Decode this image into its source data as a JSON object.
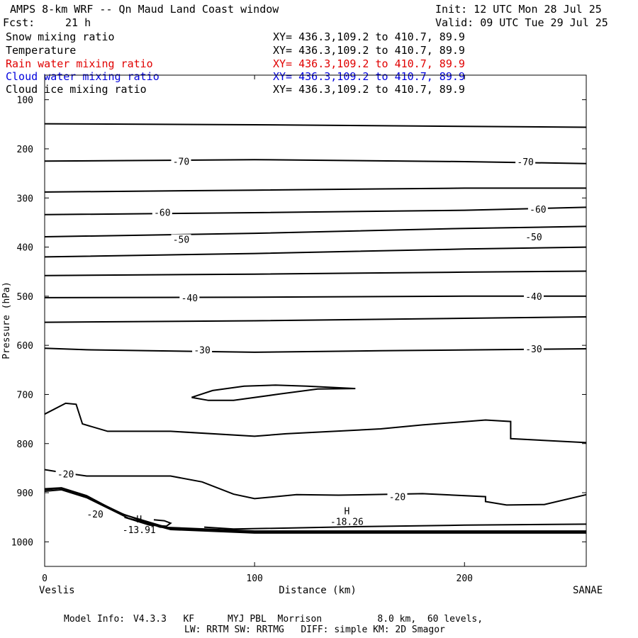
{
  "header": {
    "title": "AMPS 8-km WRF -- Qn Maud Land Coast window",
    "init": "Init: 12 UTC Mon 28 Jul 25",
    "fcst_label": "Fcst:",
    "fcst_value": "21 h",
    "valid": "Valid: 09 UTC Tue 29 Jul 25"
  },
  "fields": [
    {
      "name": "Snow mixing ratio",
      "xy": "XY= 436.3,109.2 to 410.7, 89.9",
      "color": "#000000"
    },
    {
      "name": "Temperature",
      "xy": "XY= 436.3,109.2 to 410.7, 89.9",
      "color": "#000000"
    },
    {
      "name": "Rain water mixing ratio",
      "xy": "XY= 436.3,109.2 to 410.7, 89.9",
      "color": "#e00000"
    },
    {
      "name": "Cloud water mixing ratio",
      "xy": "XY= 436.3,109.2 to 410.7, 89.9",
      "color": "#0000dd"
    },
    {
      "name": "Cloud ice mixing ratio",
      "xy": "XY= 436.3,109.2 to 410.7, 89.9",
      "color": "#000000"
    }
  ],
  "chart_data": {
    "type": "contour",
    "xlabel": "Distance (km)",
    "ylabel": "Pressure (hPa)",
    "xlim": [
      0,
      258
    ],
    "ylim": [
      1050,
      50
    ],
    "x_ticks": [
      0,
      100,
      200
    ],
    "y_ticks": [
      100,
      200,
      300,
      400,
      500,
      600,
      700,
      800,
      900,
      1000
    ],
    "x_endpoints": {
      "left": "Veslis",
      "right": "SANAE"
    },
    "contour_labels": [
      {
        "text": "-70",
        "x": 65,
        "y": 225
      },
      {
        "text": "-70",
        "x": 229,
        "y": 226
      },
      {
        "text": "-60",
        "x": 56,
        "y": 329
      },
      {
        "text": "-60",
        "x": 235,
        "y": 323
      },
      {
        "text": "-50",
        "x": 65,
        "y": 384
      },
      {
        "text": "-50",
        "x": 233,
        "y": 379
      },
      {
        "text": "-40",
        "x": 69,
        "y": 503
      },
      {
        "text": "-40",
        "x": 233,
        "y": 500
      },
      {
        "text": "-30",
        "x": 75,
        "y": 609
      },
      {
        "text": "-30",
        "x": 233,
        "y": 607
      },
      {
        "text": "-20",
        "x": 10,
        "y": 862
      },
      {
        "text": "-20",
        "x": 24,
        "y": 943
      },
      {
        "text": "-20",
        "x": 168,
        "y": 908
      }
    ],
    "extrema": [
      {
        "label": "H",
        "value": "-13.91",
        "x": 45,
        "y": 966
      },
      {
        "label": "H",
        "value": "-18.26",
        "x": 144,
        "y": 950
      }
    ],
    "contours": [
      [
        [
          0,
          149
        ],
        [
          100,
          151
        ],
        [
          258,
          156
        ]
      ],
      [
        [
          0,
          225
        ],
        [
          100,
          222
        ],
        [
          200,
          226
        ],
        [
          258,
          230
        ]
      ],
      [
        [
          0,
          288
        ],
        [
          100,
          284
        ],
        [
          200,
          280
        ],
        [
          258,
          280
        ]
      ],
      [
        [
          0,
          334
        ],
        [
          100,
          330
        ],
        [
          200,
          325
        ],
        [
          258,
          319
        ]
      ],
      [
        [
          0,
          379
        ],
        [
          100,
          372
        ],
        [
          200,
          362
        ],
        [
          258,
          358
        ]
      ],
      [
        [
          0,
          420
        ],
        [
          100,
          413
        ],
        [
          200,
          404
        ],
        [
          258,
          400
        ]
      ],
      [
        [
          0,
          458
        ],
        [
          100,
          455
        ],
        [
          200,
          451
        ],
        [
          258,
          449
        ]
      ],
      [
        [
          0,
          503
        ],
        [
          100,
          502
        ],
        [
          200,
          500
        ],
        [
          258,
          500
        ]
      ],
      [
        [
          0,
          553
        ],
        [
          100,
          550
        ],
        [
          200,
          545
        ],
        [
          258,
          542
        ]
      ],
      [
        [
          0,
          606
        ],
        [
          20,
          609
        ],
        [
          100,
          614
        ],
        [
          160,
          611
        ],
        [
          258,
          607
        ]
      ],
      [
        [
          70,
          706
        ],
        [
          80,
          692
        ],
        [
          95,
          683
        ],
        [
          110,
          681
        ],
        [
          125,
          683
        ],
        [
          148,
          688
        ],
        [
          130,
          689
        ],
        [
          112,
          699
        ],
        [
          90,
          712
        ],
        [
          78,
          712
        ],
        [
          70,
          706
        ]
      ],
      [
        [
          0,
          740
        ],
        [
          10,
          718
        ],
        [
          15,
          720
        ],
        [
          18,
          760
        ],
        [
          30,
          775
        ],
        [
          60,
          775
        ],
        [
          100,
          785
        ],
        [
          115,
          780
        ],
        [
          160,
          770
        ],
        [
          180,
          762
        ],
        [
          210,
          752
        ],
        [
          222,
          755
        ],
        [
          222,
          790
        ],
        [
          258,
          798
        ]
      ],
      [
        [
          0,
          853
        ],
        [
          10,
          860
        ],
        [
          20,
          866
        ],
        [
          60,
          866
        ],
        [
          75,
          878
        ],
        [
          90,
          903
        ],
        [
          100,
          912
        ],
        [
          120,
          904
        ],
        [
          140,
          905
        ],
        [
          180,
          902
        ],
        [
          210,
          908
        ],
        [
          210,
          918
        ],
        [
          220,
          925
        ],
        [
          238,
          924
        ],
        [
          258,
          904
        ]
      ],
      [
        [
          0,
          892
        ],
        [
          8,
          890
        ],
        [
          20,
          906
        ],
        [
          35,
          940
        ],
        [
          55,
          970
        ],
        [
          100,
          978
        ],
        [
          258,
          978
        ]
      ],
      [
        [
          0,
          897
        ],
        [
          8,
          894
        ],
        [
          20,
          910
        ],
        [
          40,
          952
        ],
        [
          60,
          975
        ],
        [
          100,
          982
        ],
        [
          258,
          982
        ]
      ],
      [
        [
          0,
          894
        ],
        [
          8,
          891
        ],
        [
          20,
          908
        ],
        [
          38,
          945
        ],
        [
          60,
          973
        ],
        [
          100,
          980
        ],
        [
          258,
          980
        ]
      ],
      [
        [
          38,
          950
        ],
        [
          50,
          966
        ],
        [
          58,
          968
        ],
        [
          60,
          962
        ],
        [
          57,
          957
        ],
        [
          52,
          955
        ]
      ],
      [
        [
          76,
          970
        ],
        [
          90,
          974
        ],
        [
          150,
          969
        ],
        [
          200,
          966
        ],
        [
          258,
          964
        ]
      ]
    ]
  },
  "footer": {
    "model_info_label": "Model Info:",
    "model_info": "V4.3.3   KF      MYJ PBL  Morrison          8.0 km,  60 levels,",
    "model_info_2": "LW: RRTM SW: RRTMG   DIFF: simple KM: 2D Smagor"
  }
}
